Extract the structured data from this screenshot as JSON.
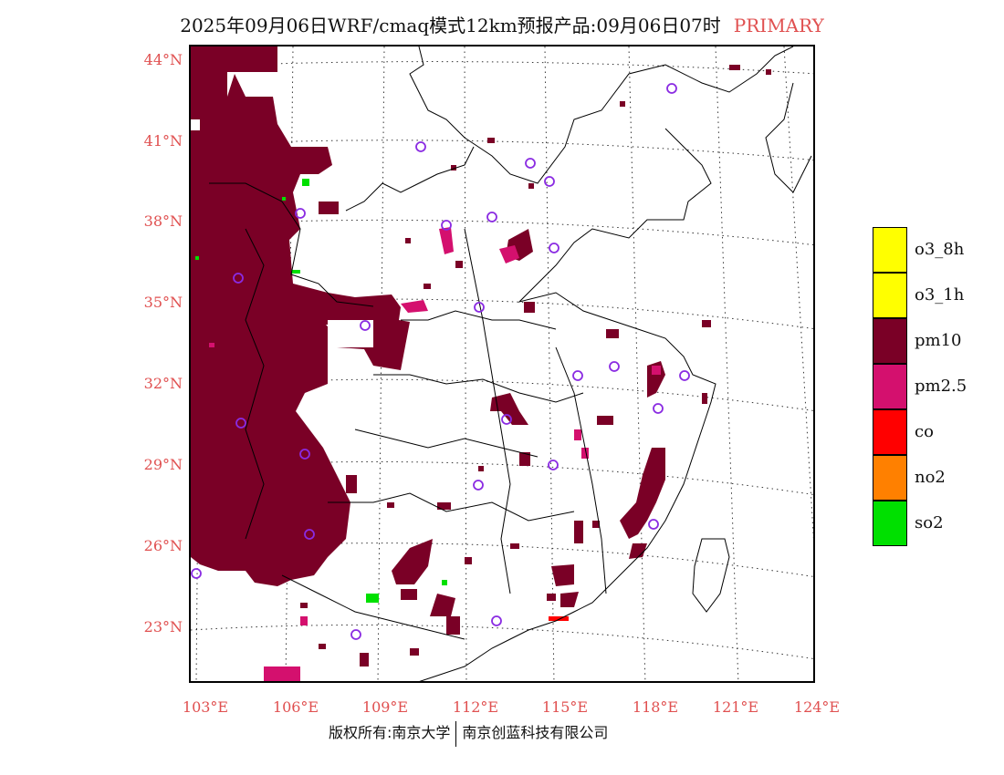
{
  "title": {
    "main": "2025年09月06日WRF/cmaq模式12km预报产品:09月06日07时",
    "tag": "PRIMARY"
  },
  "axes": {
    "lat_labels": [
      "44°N",
      "41°N",
      "38°N",
      "35°N",
      "32°N",
      "29°N",
      "26°N",
      "23°N"
    ],
    "lon_labels": [
      "103°E",
      "106°E",
      "109°E",
      "112°E",
      "115°E",
      "118°E",
      "121°E",
      "124°E"
    ]
  },
  "footer": {
    "left": "版权所有:南京大学",
    "right": "南京创蓝科技有限公司"
  },
  "legend": {
    "items": [
      {
        "label": "o3_8h",
        "color": "#ffff00"
      },
      {
        "label": "o3_1h",
        "color": "#ffff00"
      },
      {
        "label": "pm10",
        "color": "#7a0026"
      },
      {
        "label": "pm2.5",
        "color": "#d4106e"
      },
      {
        "label": "co",
        "color": "#ff0000"
      },
      {
        "label": "no2",
        "color": "#ff8000"
      },
      {
        "label": "so2",
        "color": "#00e000"
      }
    ]
  },
  "colors": {
    "pm10": "#7a0026",
    "pm25": "#d4106e",
    "so2": "#00e000",
    "co": "#ff0000",
    "station": "#8a2be2",
    "label": "#e05050"
  }
}
